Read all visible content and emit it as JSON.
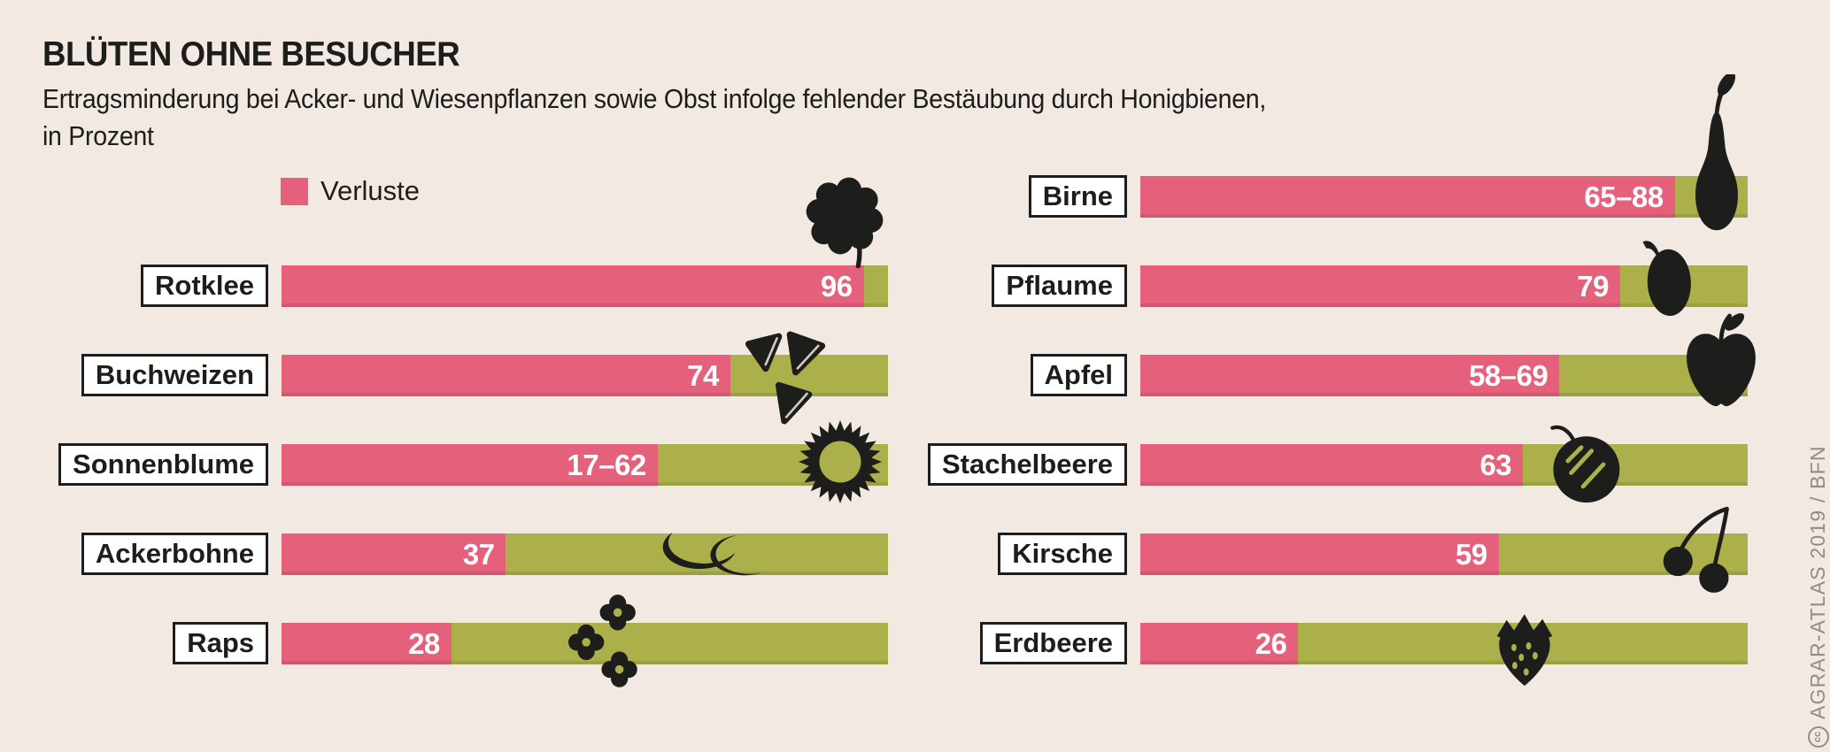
{
  "title": "BLÜTEN OHNE BESUCHER",
  "subtitle_line1": "Ertragsminderung bei Acker- und Wiesenpflanzen sowie Obst infolge fehlender Bestäubung durch Honigbienen,",
  "subtitle_line2": "in Prozent",
  "legend": {
    "label": "Verluste"
  },
  "credit": {
    "symbol": "cc",
    "text": "AGRAR-ATLAS 2019 / BFN"
  },
  "colors": {
    "background": "#f1e9e2",
    "loss_pink": "#e5607a",
    "remainder_green": "#abb04b",
    "icon_black": "#1d1d1b",
    "credit_gray": "#8d8d8d"
  },
  "chart_data": {
    "type": "bar",
    "unit": "percent",
    "xlim": [
      0,
      100
    ],
    "legend_entries": [
      "Verluste"
    ],
    "note": "pink fill length corresponds to the upper bound of the loss range",
    "columns": [
      {
        "name": "left",
        "items": [
          {
            "label": "Rotklee",
            "value_label": "96",
            "value_min": 96,
            "value_max": 96,
            "icon": "clover"
          },
          {
            "label": "Buchweizen",
            "value_label": "74",
            "value_min": 74,
            "value_max": 74,
            "icon": "buckwheat"
          },
          {
            "label": "Sonnenblume",
            "value_label": "17–62",
            "value_min": 17,
            "value_max": 62,
            "icon": "sunflower"
          },
          {
            "label": "Ackerbohne",
            "value_label": "37",
            "value_min": 37,
            "value_max": 37,
            "icon": "beans"
          },
          {
            "label": "Raps",
            "value_label": "28",
            "value_min": 28,
            "value_max": 28,
            "icon": "rapeseed"
          }
        ]
      },
      {
        "name": "right",
        "items": [
          {
            "label": "Birne",
            "value_label": "65–88",
            "value_min": 65,
            "value_max": 88,
            "icon": "pear"
          },
          {
            "label": "Pflaume",
            "value_label": "79",
            "value_min": 79,
            "value_max": 79,
            "icon": "plum"
          },
          {
            "label": "Apfel",
            "value_label": "58–69",
            "value_min": 58,
            "value_max": 69,
            "icon": "apple"
          },
          {
            "label": "Stachelbeere",
            "value_label": "63",
            "value_min": 63,
            "value_max": 63,
            "icon": "gooseberry"
          },
          {
            "label": "Kirsche",
            "value_label": "59",
            "value_min": 59,
            "value_max": 59,
            "icon": "cherry"
          },
          {
            "label": "Erdbeere",
            "value_label": "26",
            "value_min": 26,
            "value_max": 26,
            "icon": "strawberry"
          }
        ]
      }
    ]
  }
}
